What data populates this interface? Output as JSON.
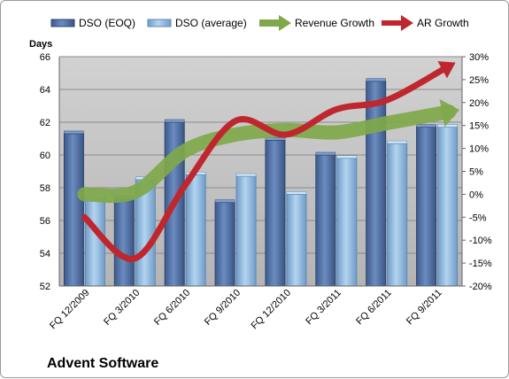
{
  "company": "Advent Software",
  "colors": {
    "dso_eoq": "#4f6fa3",
    "dso_avg": "#8fb8e0",
    "revenue_growth": "#7fa84a",
    "ar_growth": "#c0262d",
    "plot_bg": "#c0c0c0"
  },
  "chart_data": {
    "type": "bar",
    "categories": [
      "FQ 12/2009",
      "FQ 3/2010",
      "FQ 6/2010",
      "FQ 9/2010",
      "FQ 12/2010",
      "FQ 3/2011",
      "FQ 6/2011",
      "FQ 9/2011"
    ],
    "series": [
      {
        "name": "DSO (EOQ)",
        "type": "bar",
        "axis": "left",
        "values": [
          61.3,
          57.3,
          62.0,
          57.1,
          60.9,
          60.0,
          64.5,
          61.7
        ]
      },
      {
        "name": "DSO (average)",
        "type": "bar",
        "axis": "left",
        "values": [
          57.4,
          58.5,
          58.8,
          58.7,
          57.6,
          59.8,
          60.7,
          61.7
        ]
      },
      {
        "name": "Revenue Growth",
        "type": "line",
        "axis": "right",
        "values": [
          0.0,
          0.5,
          9.5,
          13.0,
          14.0,
          13.5,
          15.5,
          17.5
        ]
      },
      {
        "name": "AR Growth",
        "type": "line",
        "axis": "right",
        "values": [
          -5.0,
          -14.0,
          2.0,
          16.0,
          13.0,
          18.5,
          20.5,
          26.5
        ]
      }
    ],
    "ylabel": "Days",
    "ylim": [
      52,
      66
    ],
    "yticks": [
      "52",
      "54",
      "56",
      "58",
      "60",
      "62",
      "64",
      "66"
    ],
    "y2lim": [
      -20,
      30
    ],
    "y2ticks": [
      "-20%",
      "-15%",
      "-10%",
      "-5%",
      "0%",
      "5%",
      "10%",
      "15%",
      "20%",
      "25%",
      "30%"
    ],
    "grid": true,
    "legend": "top"
  }
}
